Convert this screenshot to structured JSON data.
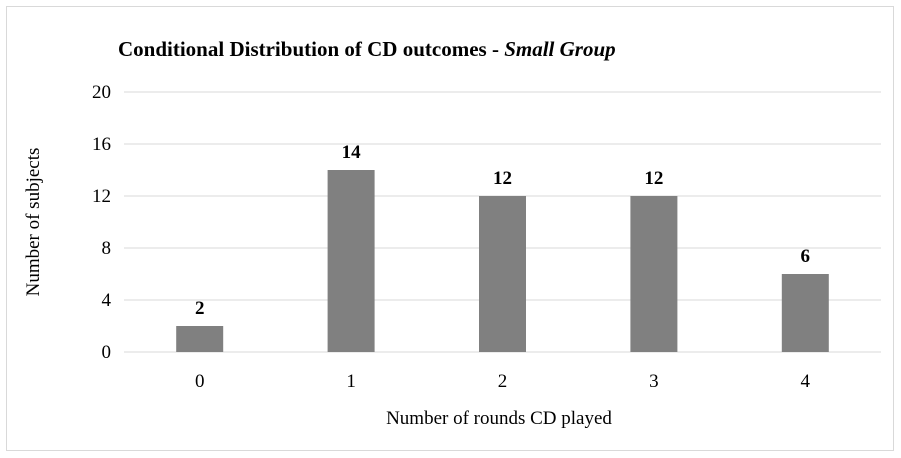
{
  "chart_data": {
    "type": "bar",
    "title": "Conditional Distribution of CD outcomes - ",
    "title_emphasis": "Small Group",
    "xlabel": "Number of rounds CD played",
    "ylabel": "Number of subjects",
    "categories": [
      "0",
      "1",
      "2",
      "3",
      "4"
    ],
    "values": [
      2,
      14,
      12,
      12,
      6
    ],
    "data_labels": [
      "2",
      "14",
      "12",
      "12",
      "6"
    ],
    "ylim": [
      0,
      20
    ],
    "yticks": [
      "0",
      "4",
      "8",
      "12",
      "16",
      "20"
    ],
    "grid": true,
    "legend": "none",
    "bar_color": "#808080",
    "grid_color": "#d9d9d9"
  }
}
